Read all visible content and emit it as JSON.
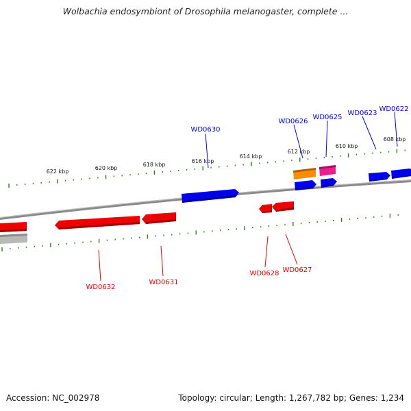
{
  "title": "Wolbachia endosymbiont of Drosophila melanogaster, complete ...",
  "footer": {
    "accession": "Accession: NC_002978",
    "summary": "Topology: circular; Length: 1,267,782 bp; Genes: 1,234"
  },
  "colors": {
    "backbone": "#8a8a8a",
    "tick": "#2e7d1e",
    "forward_gene": "#0000ee",
    "reverse_gene": "#ee0000",
    "orange_gene": "#ff8c00",
    "pink_gene": "#ee1f8c",
    "grey_gene": "#b8b8b8"
  },
  "scale_labels": [
    "622 kbp",
    "620 kbp",
    "618 kbp",
    "616 kbp",
    "614 kbp",
    "612 kbp",
    "610 kbp",
    "608 kbp"
  ],
  "gene_labels": [
    {
      "text": "WD0630",
      "strand": "forward"
    },
    {
      "text": "WD0626",
      "strand": "forward"
    },
    {
      "text": "WD0625",
      "strand": "forward"
    },
    {
      "text": "WD0623",
      "strand": "forward"
    },
    {
      "text": "WD0622",
      "strand": "forward"
    },
    {
      "text": "WD0632",
      "strand": "reverse"
    },
    {
      "text": "WD0631",
      "strand": "reverse"
    },
    {
      "text": "WD0628",
      "strand": "reverse"
    },
    {
      "text": "WD0627",
      "strand": "reverse"
    }
  ]
}
